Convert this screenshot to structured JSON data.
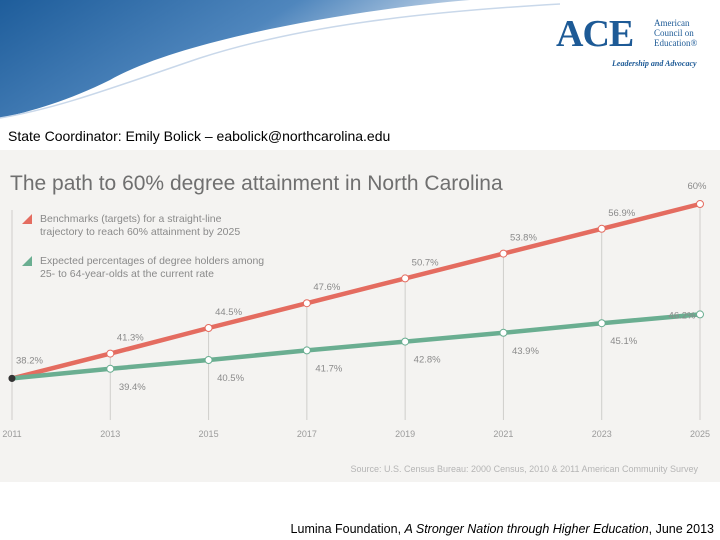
{
  "slide": {
    "coordinator_text": "State Coordinator:  Emily Bolick – eabolick@northcarolina.edu",
    "footer_prefix": "Lumina Foundation, ",
    "footer_italic": "A Stronger Nation through Higher Education",
    "footer_suffix": ", June 2013"
  },
  "logo": {
    "wordmark": "ACE",
    "org_line1": "American",
    "org_line2": "Council on",
    "org_line3": "Education®",
    "tagline": "Leadership and Advocacy"
  },
  "colors": {
    "banner_blue": "#1e5d9b",
    "benchmark": "#e46c60",
    "expected": "#6aae91",
    "panel": "#f4f3f1",
    "logo_blue": "#1d5a96"
  },
  "chart_data": {
    "type": "line",
    "title": "The path to 60% degree attainment in North Carolina",
    "source": "Source: U.S. Census Bureau: 2000 Census, 2010 & 2011 American Community Survey",
    "x": [
      2011,
      2013,
      2015,
      2017,
      2019,
      2021,
      2023,
      2025
    ],
    "xlim": [
      2011,
      2025
    ],
    "ylim": [
      33,
      63
    ],
    "grid": "vertical",
    "legend_position": "top-left",
    "series": [
      {
        "name": "Benchmarks (targets) for a straight-line trajectory to reach 60% attainment by 2025",
        "color": "#e46c60",
        "values": [
          38.2,
          41.3,
          44.5,
          47.6,
          50.7,
          53.8,
          56.9,
          60.0
        ],
        "labels": [
          "38.2%",
          "41.3%",
          "44.5%",
          "47.6%",
          "50.7%",
          "53.8%",
          "56.9%",
          "60%"
        ]
      },
      {
        "name": "Expected percentages of degree holders among 25- to 64-year-olds at the current rate",
        "color": "#6aae91",
        "values": [
          38.2,
          39.4,
          40.5,
          41.7,
          42.8,
          43.9,
          45.1,
          46.2
        ],
        "labels": [
          "38.2%",
          "39.4%",
          "40.5%",
          "41.7%",
          "42.8%",
          "43.9%",
          "45.1%",
          "46.2%"
        ]
      }
    ]
  }
}
